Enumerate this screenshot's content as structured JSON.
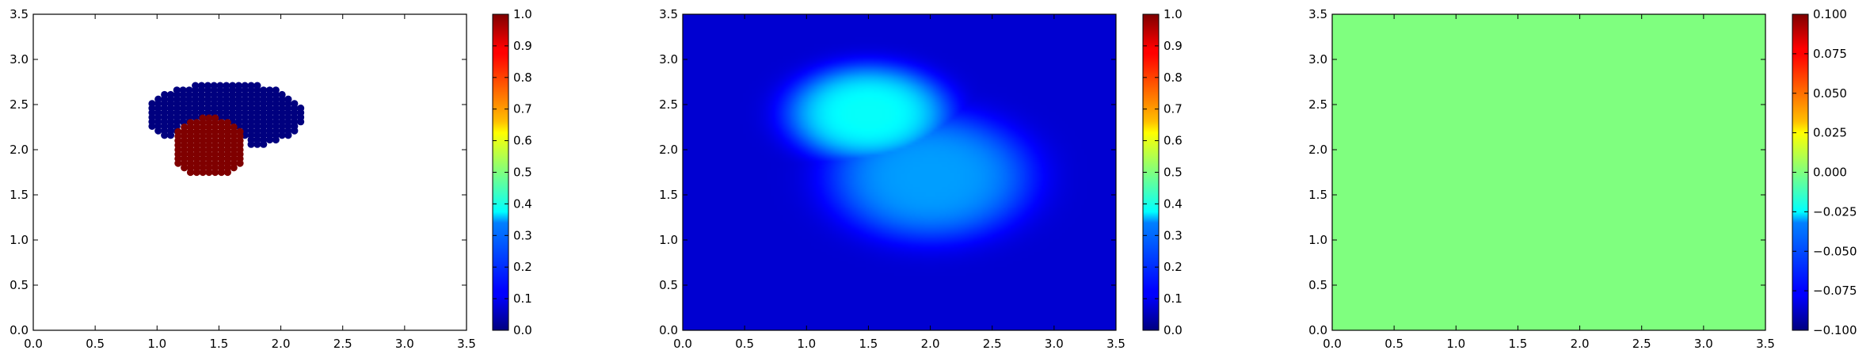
{
  "chart_data": [
    {
      "type": "scatter",
      "xlim": [
        0,
        3.5
      ],
      "ylim": [
        0,
        3.5
      ],
      "xticks": [
        "0.0",
        "0.5",
        "1.0",
        "1.5",
        "2.0",
        "2.5",
        "3.0",
        "3.5"
      ],
      "yticks": [
        "0.0",
        "0.5",
        "1.0",
        "1.5",
        "2.0",
        "2.5",
        "3.0",
        "3.5"
      ],
      "grid": false,
      "colormap": "jet",
      "series": [
        {
          "value": 0.0,
          "color": "#00007f",
          "center": [
            1.55,
            2.38
          ],
          "radii": [
            0.64,
            0.37
          ],
          "marker_spacing": 0.05
        },
        {
          "value": 1.0,
          "color": "#7f0000",
          "center": [
            1.42,
            2.03
          ],
          "radii": [
            0.3,
            0.33
          ],
          "marker_spacing": 0.05
        }
      ],
      "colorbar": {
        "range": [
          0,
          1
        ],
        "ticks": [
          "0.0",
          "0.1",
          "0.2",
          "0.3",
          "0.4",
          "0.5",
          "0.6",
          "0.7",
          "0.8",
          "0.9",
          "1.0"
        ]
      }
    },
    {
      "type": "heatmap",
      "xlim": [
        0,
        3.5
      ],
      "ylim": [
        0,
        3.5
      ],
      "xticks": [
        "0.0",
        "0.5",
        "1.0",
        "1.5",
        "2.0",
        "2.5",
        "3.0",
        "3.5"
      ],
      "yticks": [
        "0.0",
        "0.5",
        "1.0",
        "1.5",
        "2.0",
        "2.5",
        "3.0",
        "3.5"
      ],
      "grid": false,
      "colormap": "jet",
      "field": {
        "background_value": 0.08,
        "blobs": [
          {
            "x": 1.5,
            "y": 2.4,
            "sx": 0.55,
            "sy": 0.45,
            "value": 0.38
          },
          {
            "x": 2.0,
            "y": 1.7,
            "sx": 0.7,
            "sy": 0.6,
            "value": 0.28
          }
        ]
      },
      "colorbar": {
        "range": [
          0,
          1
        ],
        "ticks": [
          "0.0",
          "0.1",
          "0.2",
          "0.3",
          "0.4",
          "0.5",
          "0.6",
          "0.7",
          "0.8",
          "0.9",
          "1.0"
        ]
      }
    },
    {
      "type": "heatmap",
      "xlim": [
        0,
        3.5
      ],
      "ylim": [
        0,
        3.5
      ],
      "xticks": [
        "0.0",
        "0.5",
        "1.0",
        "1.5",
        "2.0",
        "2.5",
        "3.0",
        "3.5"
      ],
      "yticks": [
        "0.0",
        "0.5",
        "1.0",
        "1.5",
        "2.0",
        "2.5",
        "3.0",
        "3.5"
      ],
      "grid": false,
      "colormap": "jet",
      "field": {
        "uniform_value": 0.0,
        "color": "#7fff7f"
      },
      "colorbar": {
        "range": [
          -0.1,
          0.1
        ],
        "ticks": [
          "−0.100",
          "−0.075",
          "−0.050",
          "−0.025",
          "0.000",
          "0.025",
          "0.050",
          "0.075",
          "0.100"
        ]
      }
    }
  ]
}
